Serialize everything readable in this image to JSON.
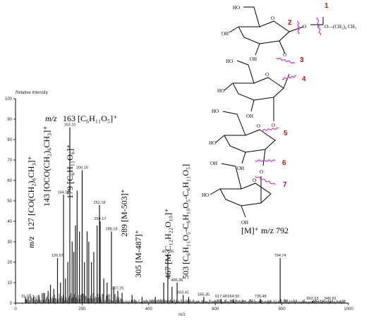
{
  "chart_data": {
    "type": "bar",
    "title": "",
    "ylabel": "Relative Intensity",
    "xlabel": "m/z",
    "xlim": [
      0,
      1000
    ],
    "ylim": [
      0,
      100
    ],
    "xticks": [
      0,
      200,
      400,
      600,
      800,
      1000
    ],
    "yticks": [
      0,
      10,
      20,
      30,
      40,
      50,
      60,
      70,
      80,
      90,
      100
    ],
    "colors": {
      "spectrum": "#1a1a1a",
      "cleavage_marks": "#cc33cc",
      "cleavage_numbers": "#cc1111",
      "structure": "#000000"
    },
    "peaks": [
      {
        "mz": 31.97,
        "y": 2,
        "label": "31.97"
      },
      {
        "mz": 55,
        "y": 3
      },
      {
        "mz": 70,
        "y": 4
      },
      {
        "mz": 85,
        "y": 5
      },
      {
        "mz": 98,
        "y": 6
      },
      {
        "mz": 105,
        "y": 9
      },
      {
        "mz": 115,
        "y": 7
      },
      {
        "mz": 126.07,
        "y": 22,
        "label": "126.07"
      },
      {
        "mz": 135,
        "y": 10
      },
      {
        "mz": 144.13,
        "y": 53,
        "label": "144.13"
      },
      {
        "mz": 150,
        "y": 12
      },
      {
        "mz": 157,
        "y": 20
      },
      {
        "mz": 163.1,
        "y": 86,
        "label": "163.10"
      },
      {
        "mz": 170,
        "y": 30
      },
      {
        "mz": 175,
        "y": 25
      },
      {
        "mz": 180,
        "y": 38
      },
      {
        "mz": 185,
        "y": 55
      },
      {
        "mz": 192,
        "y": 35
      },
      {
        "mz": 200.15,
        "y": 65,
        "label": "200.15"
      },
      {
        "mz": 207,
        "y": 20
      },
      {
        "mz": 215,
        "y": 35
      },
      {
        "mz": 220,
        "y": 30
      },
      {
        "mz": 228,
        "y": 20
      },
      {
        "mz": 235,
        "y": 25
      },
      {
        "mz": 245,
        "y": 38
      },
      {
        "mz": 252.18,
        "y": 48,
        "label": "252.18"
      },
      {
        "mz": 254.17,
        "y": 40,
        "label": "254.17"
      },
      {
        "mz": 265,
        "y": 12
      },
      {
        "mz": 275,
        "y": 10
      },
      {
        "mz": 288.18,
        "y": 35,
        "label": "288.18"
      },
      {
        "mz": 295,
        "y": 8
      },
      {
        "mz": 307.25,
        "y": 6,
        "label": "307.25"
      },
      {
        "mz": 320,
        "y": 5
      },
      {
        "mz": 350,
        "y": 4
      },
      {
        "mz": 380,
        "y": 3
      },
      {
        "mz": 420,
        "y": 3
      },
      {
        "mz": 445,
        "y": 10
      },
      {
        "mz": 457.45,
        "y": 24,
        "label": "457.45"
      },
      {
        "mz": 470,
        "y": 8
      },
      {
        "mz": 485.36,
        "y": 10,
        "label": "485.36"
      },
      {
        "mz": 503.41,
        "y": 4,
        "label": "503.41"
      },
      {
        "mz": 520,
        "y": 3
      },
      {
        "mz": 565.35,
        "y": 3,
        "label": "565.35"
      },
      {
        "mz": 617.48,
        "y": 2,
        "label": "617.48"
      },
      {
        "mz": 654.56,
        "y": 2,
        "label": "654.56"
      },
      {
        "mz": 735.48,
        "y": 2,
        "label": "735.48"
      },
      {
        "mz": 794.74,
        "y": 22,
        "label": "794.74"
      },
      {
        "mz": 892.23,
        "y": 1,
        "label": "892.23"
      },
      {
        "mz": 945.81,
        "y": 1,
        "label": "945.81"
      }
    ],
    "annotations": {
      "a127_pre": "m/z",
      "a127": "127 [CO(CH₂)₆CH₃]⁺",
      "a143": "143 [OCO(CH₂)₆CH₃]⁺",
      "a163_pre": "m/z",
      "a163": "163 [C₆H₁₁O₅]⁺",
      "a179": "179 [C₆H₁₁O₆]⁺",
      "a289": "289 [M-503]⁺",
      "a305": "305 [M-487]⁺",
      "a467": "467 [M-C₁₂H₂₂O₁₀]⁺",
      "a503": "503 [C₆H₁₁O₅-C₆H₁₀O₅-C₆H₁₁O₅]",
      "aM": "[M]⁺ m/z  792"
    },
    "structure": {
      "oh": "OH",
      "ho": "HO",
      "o": "O",
      "acyl_c": "C",
      "acyl_rest": "O—(CH₂)₆ CH₃",
      "cleavage_numbers": [
        "1",
        "2",
        "3",
        "4",
        "5",
        "6",
        "7"
      ]
    }
  }
}
